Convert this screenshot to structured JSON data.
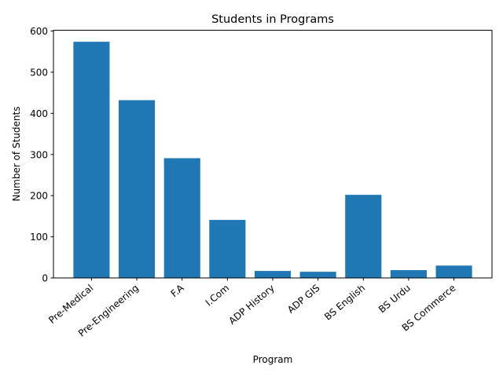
{
  "chart_data": {
    "type": "bar",
    "title": "Students in Programs",
    "xlabel": "Program",
    "ylabel": "Number of Students",
    "categories": [
      "Pre-Medical",
      "Pre-Engineering",
      "F.A",
      "I.Com",
      "ADP History",
      "ADP GIS",
      "BS English",
      "BS Urdu",
      "BS Commerce"
    ],
    "values": [
      574,
      432,
      291,
      141,
      17,
      15,
      202,
      19,
      30
    ],
    "yticks": [
      0,
      100,
      200,
      300,
      400,
      500,
      600
    ],
    "ylim": [
      0,
      602
    ],
    "grid": false,
    "bar_color": "#1f77b4",
    "xtick_rotation": 40
  }
}
